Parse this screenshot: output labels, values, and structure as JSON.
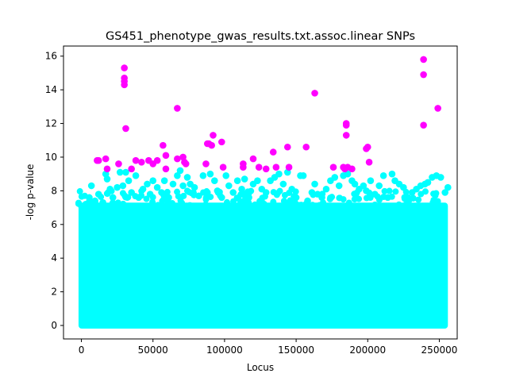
{
  "chart_data": {
    "type": "scatter",
    "title": "GS451_phenotype_gwas_results.txt.assoc.linear SNPs",
    "xlabel": "Locus",
    "ylabel": "-log p-value",
    "xlim": [
      -12500,
      262500
    ],
    "ylim": [
      -0.8,
      16.6
    ],
    "xticks": [
      0,
      50000,
      100000,
      150000,
      200000,
      250000
    ],
    "xtick_labels": [
      "0",
      "50000",
      "100000",
      "150000",
      "200000",
      "250000"
    ],
    "yticks": [
      0,
      2,
      4,
      6,
      8,
      10,
      12,
      14,
      16
    ],
    "ytick_labels": [
      "0",
      "2",
      "4",
      "6",
      "8",
      "10",
      "12",
      "14",
      "16"
    ],
    "grid": false,
    "colors": {
      "background": "#ffffff",
      "axes": "#000000"
    },
    "series": [
      {
        "color": "#00ffff",
        "description": "SNPs with -log p below ~9 (dense band spanning the full locus range, ~0 to 256000)",
        "band": {
          "x_range": [
            -2000,
            256000
          ],
          "y_range": [
            0,
            7.3
          ]
        },
        "points": [
          [
            3000,
            7.2
          ],
          [
            5500,
            7.6
          ],
          [
            7000,
            8.3
          ],
          [
            9500,
            7.4
          ],
          [
            12000,
            7.8
          ],
          [
            15000,
            7.3
          ],
          [
            17000,
            9.0
          ],
          [
            18000,
            8.7
          ],
          [
            20000,
            8.1
          ],
          [
            22000,
            7.6
          ],
          [
            25000,
            8.2
          ],
          [
            27000,
            9.1
          ],
          [
            29000,
            8.3
          ],
          [
            31000,
            9.1
          ],
          [
            33000,
            8.6
          ],
          [
            35000,
            7.9
          ],
          [
            38000,
            8.9
          ],
          [
            40000,
            7.6
          ],
          [
            43000,
            8.1
          ],
          [
            46000,
            8.4
          ],
          [
            48000,
            7.8
          ],
          [
            50000,
            8.6
          ],
          [
            53000,
            8.2
          ],
          [
            56000,
            7.9
          ],
          [
            58000,
            8.6
          ],
          [
            61000,
            7.6
          ],
          [
            64000,
            8.4
          ],
          [
            67000,
            8.9
          ],
          [
            69000,
            9.2
          ],
          [
            71000,
            8.3
          ],
          [
            74000,
            8.8
          ],
          [
            76000,
            8.4
          ],
          [
            79000,
            8.2
          ],
          [
            82000,
            7.7
          ],
          [
            85000,
            8.9
          ],
          [
            88000,
            7.9
          ],
          [
            90000,
            9.0
          ],
          [
            93000,
            8.6
          ],
          [
            95000,
            8.0
          ],
          [
            98000,
            7.6
          ],
          [
            101000,
            8.9
          ],
          [
            103000,
            8.3
          ],
          [
            106000,
            7.9
          ],
          [
            109000,
            8.6
          ],
          [
            112000,
            8.1
          ],
          [
            114000,
            8.7
          ],
          [
            117000,
            7.6
          ],
          [
            120000,
            8.4
          ],
          [
            123000,
            8.6
          ],
          [
            126000,
            8.1
          ],
          [
            129000,
            7.9
          ],
          [
            132000,
            8.6
          ],
          [
            135000,
            8.8
          ],
          [
            138000,
            9.0
          ],
          [
            141000,
            8.4
          ],
          [
            144000,
            9.1
          ],
          [
            147000,
            8.1
          ],
          [
            150000,
            7.6
          ],
          [
            153000,
            8.9
          ],
          [
            155000,
            8.9
          ],
          [
            158000,
            7.4
          ],
          [
            161000,
            7.9
          ],
          [
            163000,
            8.4
          ],
          [
            165000,
            7.8
          ],
          [
            168000,
            7.6
          ],
          [
            171000,
            8.1
          ],
          [
            174000,
            8.6
          ],
          [
            177000,
            8.8
          ],
          [
            180000,
            8.3
          ],
          [
            183000,
            8.9
          ],
          [
            186000,
            9.0
          ],
          [
            189000,
            8.6
          ],
          [
            191000,
            8.4
          ],
          [
            194000,
            8.1
          ],
          [
            197000,
            8.3
          ],
          [
            199000,
            8.0
          ],
          [
            202000,
            8.6
          ],
          [
            205000,
            7.8
          ],
          [
            208000,
            8.3
          ],
          [
            211000,
            8.9
          ],
          [
            214000,
            7.6
          ],
          [
            217000,
            9.0
          ],
          [
            219000,
            8.6
          ],
          [
            222000,
            8.4
          ],
          [
            225000,
            8.2
          ],
          [
            228000,
            7.6
          ],
          [
            231000,
            7.9
          ],
          [
            234000,
            8.1
          ],
          [
            237000,
            8.3
          ],
          [
            240000,
            8.4
          ],
          [
            242000,
            8.5
          ],
          [
            245000,
            8.8
          ],
          [
            248000,
            8.9
          ],
          [
            251000,
            8.8
          ],
          [
            254000,
            7.9
          ],
          [
            256000,
            8.2
          ]
        ]
      },
      {
        "color": "#ff00ff",
        "description": "SNPs with -log p above ~9",
        "points": [
          [
            11000,
            9.8
          ],
          [
            12000,
            9.8
          ],
          [
            17000,
            9.9
          ],
          [
            18000,
            9.3
          ],
          [
            26000,
            9.6
          ],
          [
            30000,
            15.3
          ],
          [
            30000,
            14.7
          ],
          [
            30000,
            14.5
          ],
          [
            30000,
            14.3
          ],
          [
            31000,
            11.7
          ],
          [
            35000,
            9.3
          ],
          [
            38000,
            9.8
          ],
          [
            42000,
            9.7
          ],
          [
            47000,
            9.8
          ],
          [
            50000,
            9.6
          ],
          [
            53000,
            9.8
          ],
          [
            57000,
            10.7
          ],
          [
            59000,
            10.1
          ],
          [
            59000,
            9.3
          ],
          [
            67000,
            12.9
          ],
          [
            67000,
            9.9
          ],
          [
            71000,
            10.0
          ],
          [
            72000,
            9.7
          ],
          [
            73000,
            9.6
          ],
          [
            87000,
            9.6
          ],
          [
            88000,
            10.8
          ],
          [
            89000,
            10.8
          ],
          [
            91000,
            10.7
          ],
          [
            92000,
            11.3
          ],
          [
            98000,
            10.9
          ],
          [
            99000,
            9.4
          ],
          [
            113000,
            9.6
          ],
          [
            113000,
            9.4
          ],
          [
            120000,
            9.9
          ],
          [
            124000,
            9.4
          ],
          [
            129000,
            9.3
          ],
          [
            134000,
            10.3
          ],
          [
            136000,
            9.4
          ],
          [
            144000,
            10.6
          ],
          [
            145000,
            9.4
          ],
          [
            157000,
            10.6
          ],
          [
            163000,
            13.8
          ],
          [
            176000,
            9.4
          ],
          [
            183000,
            9.4
          ],
          [
            184000,
            9.3
          ],
          [
            185000,
            12.0
          ],
          [
            185000,
            11.9
          ],
          [
            185000,
            11.3
          ],
          [
            186000,
            9.4
          ],
          [
            189000,
            9.3
          ],
          [
            199000,
            10.5
          ],
          [
            200000,
            10.6
          ],
          [
            201000,
            9.7
          ],
          [
            239000,
            15.8
          ],
          [
            239000,
            14.9
          ],
          [
            239000,
            11.9
          ],
          [
            249000,
            12.9
          ]
        ]
      }
    ]
  }
}
